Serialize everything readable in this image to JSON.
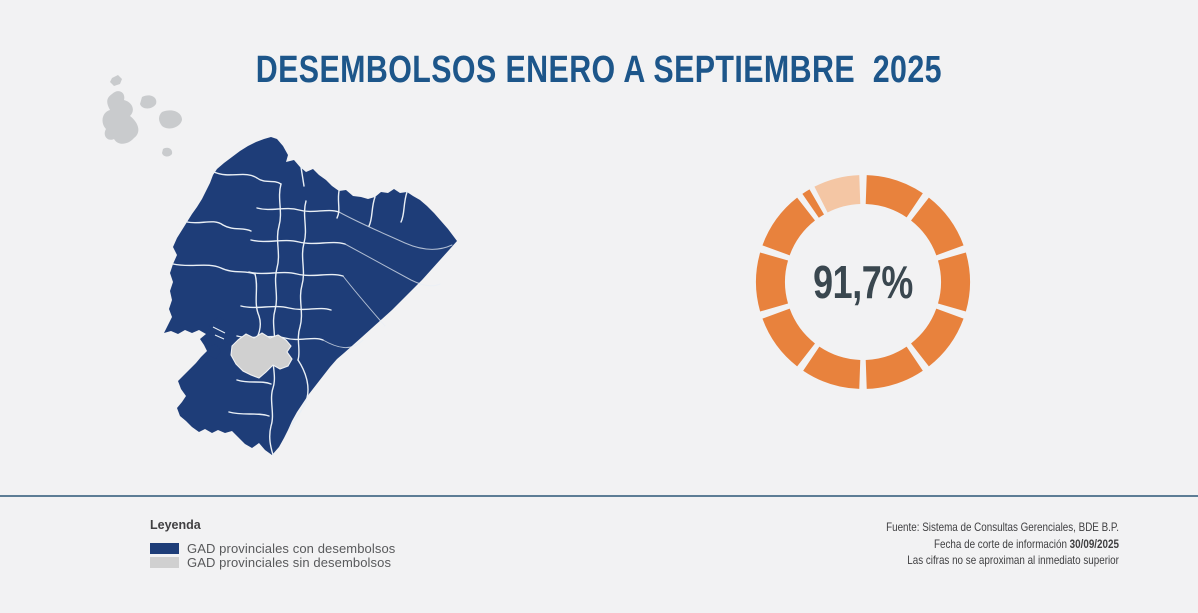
{
  "title": "DESEMBOLSOS ENERO A SEPTIEMBRE  2025",
  "map": {
    "description": "ecuador-provinces-choropleth",
    "legend_title": "Leyenda",
    "legend": [
      {
        "label": "GAD provinciales con desembolsos",
        "color": "#1E3D78"
      },
      {
        "label": "GAD provinciales sin desembolsos",
        "color": "#D0D0D0"
      }
    ]
  },
  "chart_data": {
    "type": "pie",
    "subtype": "donut",
    "center_label": "91,7%",
    "series": [
      {
        "name": "GAD provinciales con desembolsos",
        "value": 91.7,
        "color": "#E8823D"
      },
      {
        "name": "GAD provinciales sin desembolsos",
        "value": 8.3,
        "color": "#F4C6A4"
      }
    ],
    "legend_position": "none",
    "segments": [
      {
        "start": 2,
        "end": 34,
        "color": "#E8823D"
      },
      {
        "start": 38,
        "end": 70,
        "color": "#E8823D"
      },
      {
        "start": 74,
        "end": 106,
        "color": "#E8823D"
      },
      {
        "start": 110,
        "end": 142,
        "color": "#E8823D"
      },
      {
        "start": 146,
        "end": 178,
        "color": "#E8823D"
      },
      {
        "start": 182,
        "end": 214,
        "color": "#E8823D"
      },
      {
        "start": 218,
        "end": 250,
        "color": "#E8823D"
      },
      {
        "start": 254,
        "end": 286,
        "color": "#E8823D"
      },
      {
        "start": 290,
        "end": 322,
        "color": "#E8823D"
      },
      {
        "start": 325.5,
        "end": 330,
        "color": "#E8823D"
      },
      {
        "start": 333,
        "end": 358,
        "color": "#F4C6A4"
      }
    ]
  },
  "footer": {
    "line1": "Fuente: Sistema de Consultas Gerenciales, BDE B.P.",
    "line2_prefix": "Fecha de corte de información ",
    "line2_bold": "30/09/2025",
    "line3": "Las cifras no se aproximan al inmediato superior"
  },
  "colors": {
    "background": "#F2F2F3",
    "title_blue": "#1D568A",
    "map_blue": "#1E3D78",
    "province_border": "#E9EFF5",
    "no_disbursement_gray": "#D0D0D0",
    "galapagos_gray": "#C9CBCD",
    "donut_orange": "#E8823D",
    "donut_peach": "#F4C6A4",
    "donut_label": "#3A474F",
    "separator": "#5D7D95",
    "legend_text": "#58595B",
    "footer_text": "#3F3F41"
  }
}
